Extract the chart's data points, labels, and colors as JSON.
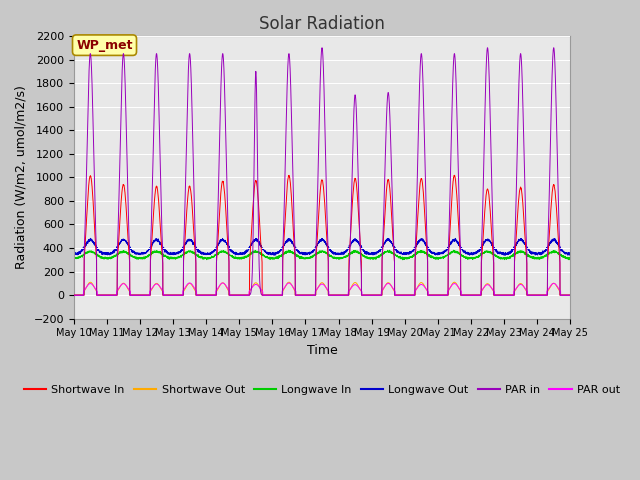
{
  "title": "Solar Radiation",
  "ylabel": "Radiation (W/m2, umol/m2/s)",
  "xlabel": "Time",
  "ylim": [
    -200,
    2200
  ],
  "yticks": [
    -200,
    0,
    200,
    400,
    600,
    800,
    1000,
    1200,
    1400,
    1600,
    1800,
    2000,
    2200
  ],
  "plot_bg_color": "#e8e8e8",
  "fig_bg_color": "#c8c8c8",
  "n_days": 15,
  "start_day": 10,
  "xtick_labels": [
    "May 10",
    "May 11",
    "May 12",
    "May 13",
    "May 14",
    "May 15",
    "May 16",
    "May 17",
    "May 18",
    "May 19",
    "May 20",
    "May 21",
    "May 22",
    "May 23",
    "May 24",
    "May 25"
  ],
  "annotation_text": "WP_met",
  "annotation_color": "#8b0000",
  "annotation_bg": "#ffffaa",
  "shortwave_in_peak": 1000,
  "shortwave_out_peak": 100,
  "longwave_in_base": 310,
  "longwave_in_peak": 370,
  "longwave_out_base": 350,
  "longwave_out_peak": 470,
  "par_in_peak": 2100,
  "par_out_peak": 100,
  "title_fontsize": 12,
  "label_fontsize": 9,
  "tick_fontsize": 8,
  "sw_color": "#ff0000",
  "sw_out_color": "#ffaa00",
  "lw_in_color": "#00cc00",
  "lw_out_color": "#0000cc",
  "par_in_color": "#9900bb",
  "par_out_color": "#ff00ff"
}
